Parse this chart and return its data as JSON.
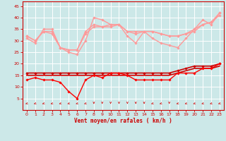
{
  "bg_color": "#cce8e8",
  "grid_color": "#ffffff",
  "xlabel": "Vent moyen/en rafales ( km/h )",
  "xlim": [
    -0.5,
    23.5
  ],
  "ylim": [
    0,
    47
  ],
  "yticks": [
    5,
    10,
    15,
    20,
    25,
    30,
    35,
    40,
    45
  ],
  "xticks": [
    0,
    1,
    2,
    3,
    4,
    5,
    6,
    7,
    8,
    9,
    10,
    11,
    12,
    13,
    14,
    15,
    16,
    17,
    18,
    19,
    20,
    21,
    22,
    23
  ],
  "series": [
    {
      "name": "rafales_high",
      "color": "#ff9999",
      "lw": 1.0,
      "marker": "D",
      "ms": 1.8,
      "y": [
        31,
        29,
        35,
        35,
        27,
        25,
        24,
        30,
        40,
        39,
        37,
        37,
        32,
        29,
        34,
        31,
        29,
        28,
        27,
        31,
        35,
        39,
        37,
        42
      ]
    },
    {
      "name": "rafales_mid",
      "color": "#ff9999",
      "lw": 1.0,
      "marker": "D",
      "ms": 1.8,
      "y": [
        32,
        30,
        34,
        34,
        27,
        26,
        26,
        34,
        37,
        36,
        37,
        37,
        34,
        34,
        34,
        34,
        33,
        32,
        32,
        33,
        35,
        37,
        38,
        42
      ]
    },
    {
      "name": "rafales_low",
      "color": "#ff9999",
      "lw": 1.0,
      "marker": "D",
      "ms": 1.8,
      "y": [
        32,
        30,
        34,
        33,
        27,
        26,
        26,
        33,
        36,
        36,
        36,
        37,
        34,
        33,
        34,
        34,
        33,
        32,
        32,
        33,
        34,
        37,
        38,
        41
      ]
    },
    {
      "name": "vent_high",
      "color": "#cc0000",
      "lw": 1.2,
      "marker": "D",
      "ms": 1.8,
      "y": [
        16,
        16,
        16,
        16,
        16,
        16,
        16,
        16,
        16,
        16,
        16,
        16,
        16,
        16,
        16,
        16,
        16,
        16,
        17,
        18,
        19,
        19,
        19,
        20
      ]
    },
    {
      "name": "vent_line",
      "color": "#cc0000",
      "lw": 1.2,
      "marker": null,
      "ms": 0,
      "y": [
        15,
        15,
        15,
        15,
        15,
        15,
        15,
        15,
        15,
        15,
        15,
        15,
        15,
        15,
        15,
        15,
        15,
        15,
        16,
        17,
        18,
        18,
        18,
        19
      ]
    },
    {
      "name": "vent_low",
      "color": "#ff0000",
      "lw": 1.0,
      "marker": "D",
      "ms": 1.8,
      "y": [
        13,
        14,
        13,
        13,
        12,
        8,
        5,
        13,
        15,
        14,
        16,
        16,
        15,
        13,
        13,
        13,
        13,
        13,
        16,
        16,
        16,
        18,
        18,
        20
      ]
    }
  ],
  "arrow_angles": [
    225,
    225,
    225,
    225,
    225,
    225,
    225,
    225,
    180,
    180,
    180,
    180,
    180,
    180,
    180,
    225,
    225,
    180,
    225,
    225,
    225,
    225,
    225,
    225
  ]
}
